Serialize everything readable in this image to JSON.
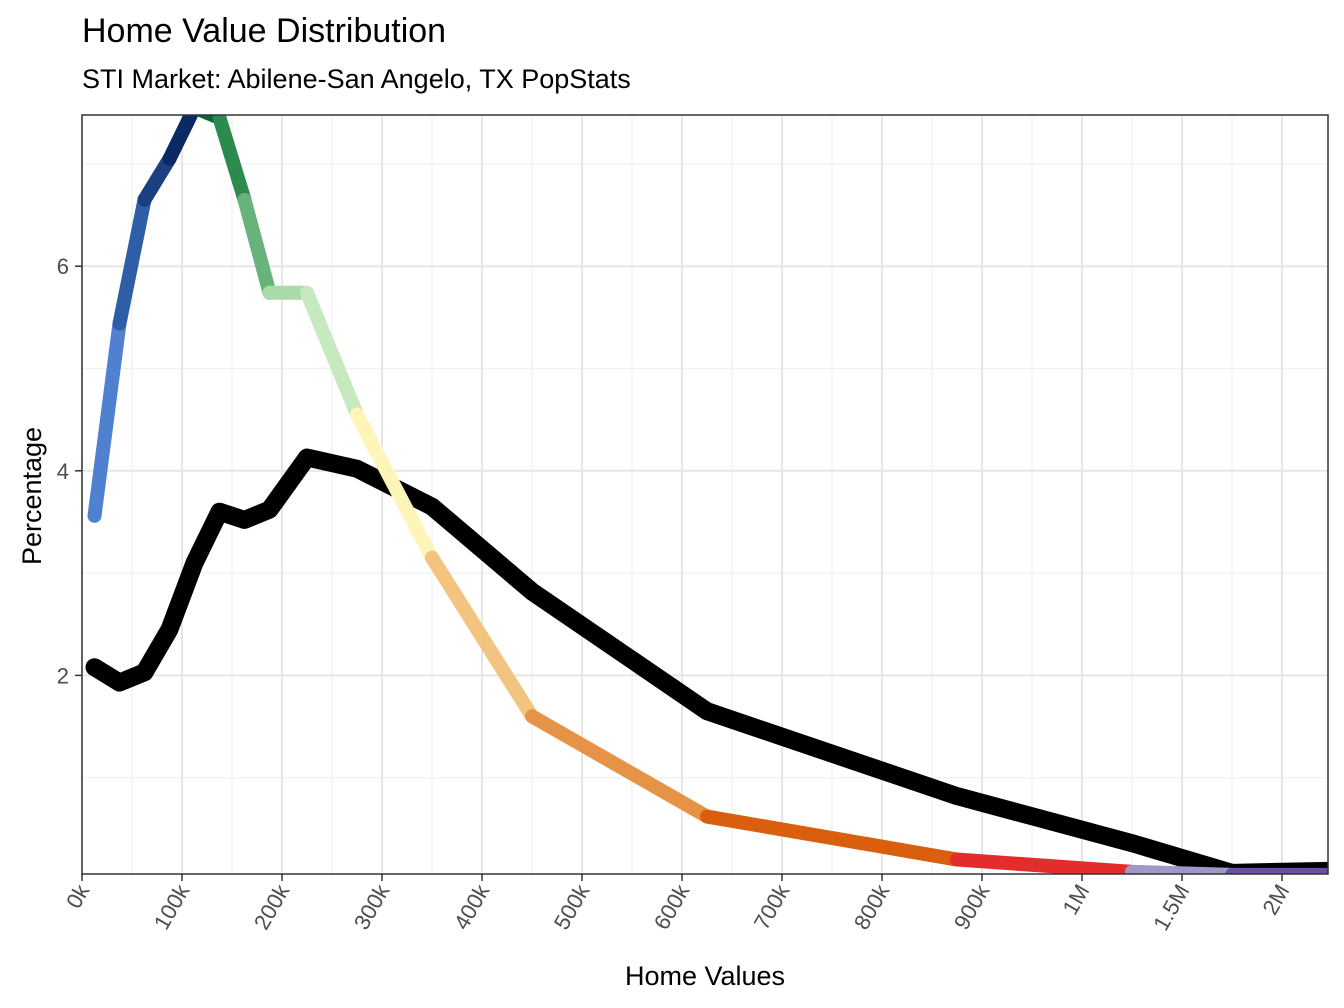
{
  "chart_data": {
    "type": "line",
    "title": "Home Value Distribution",
    "subtitle": "STI Market: Abilene-San Angelo, TX PopStats",
    "xlabel": "Home Values",
    "ylabel": "Percentage",
    "grid": true,
    "x_tick_labels": [
      "0k",
      "100k",
      "200k",
      "300k",
      "400k",
      "500k",
      "600k",
      "700k",
      "800k",
      "900k",
      "1M",
      "1.5M",
      "2M"
    ],
    "y_ticks": [
      2,
      4,
      6
    ],
    "ylim": [
      0.05,
      7.5
    ],
    "series": [
      {
        "color": "multi-color gradient",
        "segments": [
          {
            "color": "#4f81d0",
            "points": [
              [
                0.125,
                3.56
              ],
              [
                0.375,
                5.44
              ]
            ]
          },
          {
            "color": "#2e5ea6",
            "points": [
              [
                0.375,
                5.44
              ],
              [
                0.625,
                6.65
              ]
            ]
          },
          {
            "color": "#1c3f82",
            "points": [
              [
                0.625,
                6.65
              ],
              [
                0.875,
                7.05
              ]
            ]
          },
          {
            "color": "#0b2a63",
            "points": [
              [
                0.875,
                7.05
              ],
              [
                1.125,
                7.55
              ]
            ]
          },
          {
            "color": "#006837",
            "points": [
              [
                1.125,
                7.55
              ],
              [
                1.375,
                7.45
              ]
            ]
          },
          {
            "color": "#2c8a4e",
            "points": [
              [
                1.375,
                7.45
              ],
              [
                1.625,
                6.65
              ]
            ]
          },
          {
            "color": "#67b37a",
            "points": [
              [
                1.625,
                6.65
              ],
              [
                1.875,
                5.74
              ]
            ]
          },
          {
            "color": "#a9dba8",
            "points": [
              [
                1.875,
                5.74
              ],
              [
                2.25,
                5.74
              ]
            ]
          },
          {
            "color": "#c7e9c0",
            "points": [
              [
                2.25,
                5.74
              ],
              [
                2.75,
                4.55
              ]
            ]
          },
          {
            "color": "#fff5b8",
            "points": [
              [
                2.75,
                4.55
              ],
              [
                3.5,
                3.15
              ]
            ]
          },
          {
            "color": "#f2c47f",
            "points": [
              [
                3.5,
                3.15
              ],
              [
                4.5,
                1.6
              ]
            ]
          },
          {
            "color": "#e69348",
            "points": [
              [
                4.5,
                1.6
              ],
              [
                6.25,
                0.62
              ]
            ]
          },
          {
            "color": "#d95f0e",
            "points": [
              [
                6.25,
                0.62
              ],
              [
                8.75,
                0.2
              ]
            ]
          },
          {
            "color": "#e32d2d",
            "points": [
              [
                8.75,
                0.2
              ],
              [
                10.5,
                0.08
              ]
            ]
          },
          {
            "color": "#9e9ac8",
            "points": [
              [
                10.5,
                0.08
              ],
              [
                11.5,
                0.05
              ]
            ]
          },
          {
            "color": "#6a51a3",
            "points": [
              [
                11.5,
                0.05
              ],
              [
                12.5,
                0.05
              ]
            ]
          }
        ]
      },
      {
        "color": "#000000",
        "points": [
          [
            0.125,
            2.08
          ],
          [
            0.375,
            1.93
          ],
          [
            0.625,
            2.03
          ],
          [
            0.875,
            2.45
          ],
          [
            1.125,
            3.1
          ],
          [
            1.375,
            3.6
          ],
          [
            1.625,
            3.52
          ],
          [
            1.875,
            3.62
          ],
          [
            2.25,
            4.13
          ],
          [
            2.75,
            4.02
          ],
          [
            3.5,
            3.65
          ],
          [
            4.5,
            2.82
          ],
          [
            6.25,
            1.65
          ],
          [
            8.75,
            0.82
          ],
          [
            10.5,
            0.36
          ],
          [
            11.5,
            0.07
          ],
          [
            12.5,
            0.09
          ]
        ]
      }
    ]
  }
}
